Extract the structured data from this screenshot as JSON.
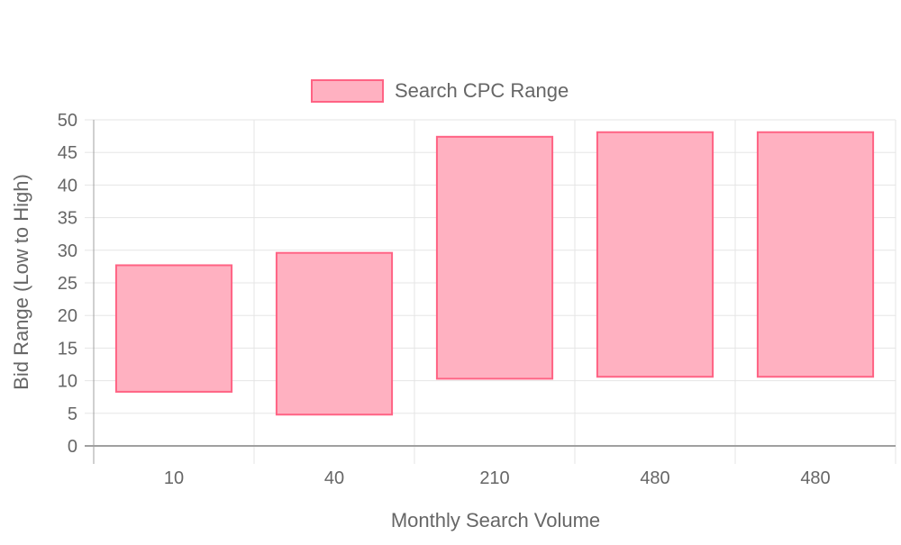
{
  "chart_data": {
    "type": "bar",
    "subtype": "floating-range",
    "categories": [
      "10",
      "40",
      "210",
      "480",
      "480"
    ],
    "series": [
      {
        "name": "Search CPC Range",
        "ranges": [
          [
            8.3,
            27.7
          ],
          [
            4.8,
            29.6
          ],
          [
            10.3,
            47.4
          ],
          [
            10.6,
            48.1
          ],
          [
            10.6,
            48.1
          ]
        ]
      }
    ],
    "xlabel": "Monthly Search Volume",
    "ylabel": "Bid Range (Low to High)",
    "ylim": [
      0,
      50
    ],
    "yticks": [
      "0",
      "5",
      "10",
      "15",
      "20",
      "25",
      "30",
      "35",
      "40",
      "45",
      "50"
    ],
    "grid": true,
    "legend_position": "top",
    "colors": {
      "bar_fill": "#ffb1c1",
      "bar_border": "#ff6384",
      "grid": "#e5e5e5",
      "axis": "#a0a0a0",
      "text": "#666666"
    }
  }
}
